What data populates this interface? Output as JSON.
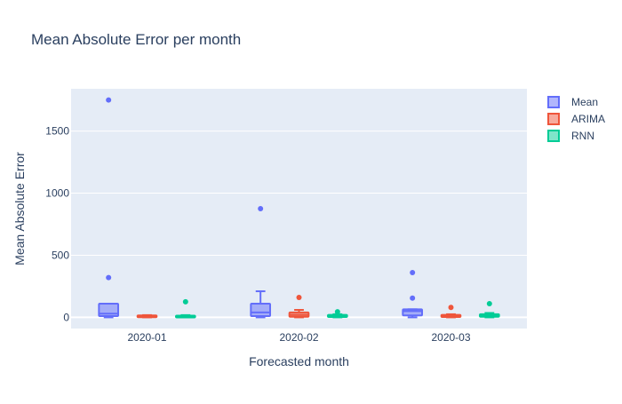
{
  "chart_data": {
    "type": "box",
    "title": "Mean Absolute Error per month",
    "xlabel": "Forecasted month",
    "ylabel": "Mean Absolute Error",
    "categories": [
      "2020-01",
      "2020-02",
      "2020-03"
    ],
    "ylim": [
      -90,
      1840
    ],
    "yticks": [
      0,
      500,
      1000,
      1500
    ],
    "ytick_labels": [
      "0",
      "500",
      "1000",
      "1500"
    ],
    "grid": true,
    "legend_position": "right",
    "series": [
      {
        "name": "Mean",
        "color": "#636efa",
        "boxes": [
          {
            "lower": 0,
            "q1": 10,
            "median": 30,
            "q3": 110,
            "upper": 110,
            "outliers": [
              320,
              1750
            ]
          },
          {
            "lower": 0,
            "q1": 10,
            "median": 40,
            "q3": 110,
            "upper": 210,
            "outliers": [
              875
            ]
          },
          {
            "lower": 0,
            "q1": 15,
            "median": 50,
            "q3": 65,
            "upper": 65,
            "outliers": [
              155,
              360
            ]
          }
        ]
      },
      {
        "name": "ARIMA",
        "color": "#ef553b",
        "boxes": [
          {
            "lower": 0,
            "q1": 2,
            "median": 8,
            "q3": 15,
            "upper": 18,
            "outliers": []
          },
          {
            "lower": 0,
            "q1": 5,
            "median": 20,
            "q3": 40,
            "upper": 60,
            "outliers": [
              160
            ]
          },
          {
            "lower": 0,
            "q1": 3,
            "median": 10,
            "q3": 20,
            "upper": 25,
            "outliers": [
              80
            ]
          }
        ]
      },
      {
        "name": "RNN",
        "color": "#00cc96",
        "boxes": [
          {
            "lower": 0,
            "q1": 3,
            "median": 8,
            "q3": 14,
            "upper": 18,
            "outliers": [
              125
            ]
          },
          {
            "lower": 0,
            "q1": 3,
            "median": 10,
            "q3": 20,
            "upper": 25,
            "outliers": [
              45
            ]
          },
          {
            "lower": 0,
            "q1": 5,
            "median": 15,
            "q3": 25,
            "upper": 35,
            "outliers": [
              110
            ]
          }
        ]
      }
    ]
  }
}
